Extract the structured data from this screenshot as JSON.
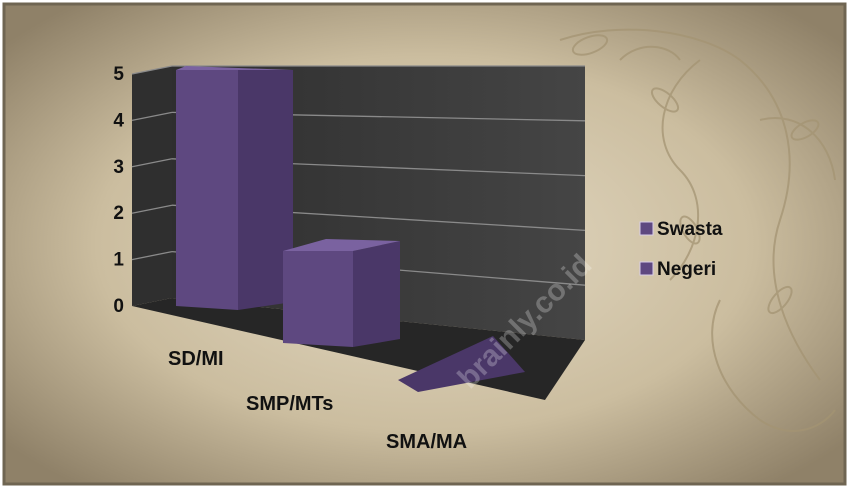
{
  "chart_data": {
    "type": "bar",
    "categories": [
      "SD/MI",
      "SMP/MTs",
      "SMA/MA"
    ],
    "series": [
      {
        "name": "Swasta",
        "values": [
          5,
          2,
          0
        ]
      },
      {
        "name": "Negeri",
        "values": [
          0,
          0,
          0
        ]
      }
    ],
    "yticks": [
      "0",
      "1",
      "2",
      "3",
      "4",
      "5"
    ],
    "ylim": [
      0,
      5
    ],
    "grid": true,
    "legend": "right",
    "colors": {
      "bar_front": "#5e4880",
      "bar_side": "#4a3768",
      "bar_top": "#7a62a0",
      "wall": "#3b3b3b",
      "floor": "#2b2b2b",
      "gridline": "#8a8a8a"
    },
    "watermark": "brainly.co.id"
  }
}
